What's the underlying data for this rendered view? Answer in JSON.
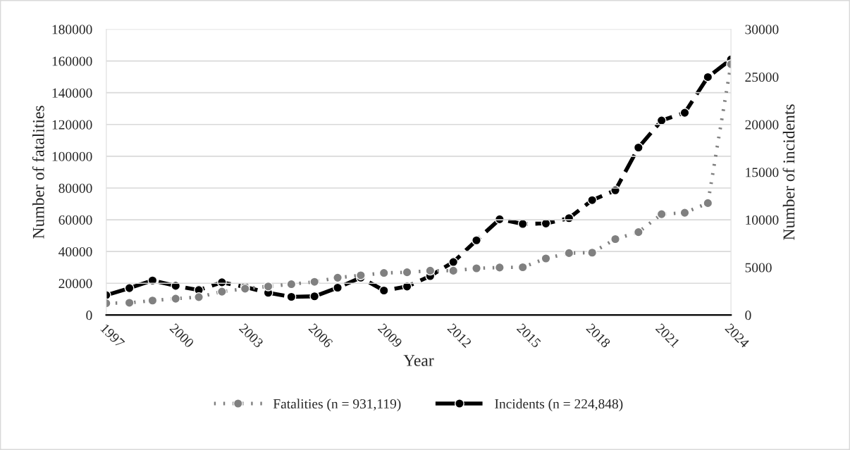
{
  "chart_data": {
    "type": "line",
    "xlabel": "Year",
    "ylabel": "Number of fatalities",
    "y2label": "Number of incidents",
    "x": [
      1997,
      1998,
      1999,
      2000,
      2001,
      2002,
      2003,
      2004,
      2005,
      2006,
      2007,
      2008,
      2009,
      2010,
      2011,
      2012,
      2013,
      2014,
      2015,
      2016,
      2017,
      2018,
      2019,
      2020,
      2021,
      2022,
      2023,
      2024
    ],
    "series": [
      {
        "name": "Fatalities (n = 931,119)",
        "color": "#808080",
        "line_style": "dotted",
        "marker": "circle",
        "values": [
          7400,
          7700,
          9100,
          10300,
          11300,
          14700,
          16600,
          18000,
          19400,
          20900,
          23500,
          25000,
          26500,
          26900,
          27900,
          27900,
          29400,
          29900,
          30100,
          35600,
          39000,
          39300,
          47800,
          52200,
          63500,
          64400,
          70500,
          158000
        ]
      },
      {
        "name": "Incidents (n = 224,848)",
        "color": "#000000",
        "line_style": "dashed",
        "marker": "circle",
        "axis": "y2",
        "values": [
          2080,
          2820,
          3630,
          3060,
          2620,
          3430,
          2940,
          2330,
          1910,
          1960,
          2870,
          3920,
          2570,
          2990,
          4090,
          5560,
          7840,
          10050,
          9560,
          9610,
          10170,
          12060,
          13090,
          17580,
          20420,
          21230,
          24980,
          26830
        ]
      }
    ],
    "xlim": [
      1997,
      2024
    ],
    "xticks": [
      1997,
      2000,
      2003,
      2006,
      2009,
      2012,
      2015,
      2018,
      2021,
      2024
    ],
    "ylim": [
      0,
      180000
    ],
    "yticks": [
      0,
      20000,
      40000,
      60000,
      80000,
      100000,
      120000,
      140000,
      160000,
      180000
    ],
    "y2lim": [
      0,
      30000
    ],
    "y2ticks": [
      0,
      5000,
      10000,
      15000,
      20000,
      25000,
      30000
    ],
    "grid": "y",
    "legend": "bottom"
  }
}
